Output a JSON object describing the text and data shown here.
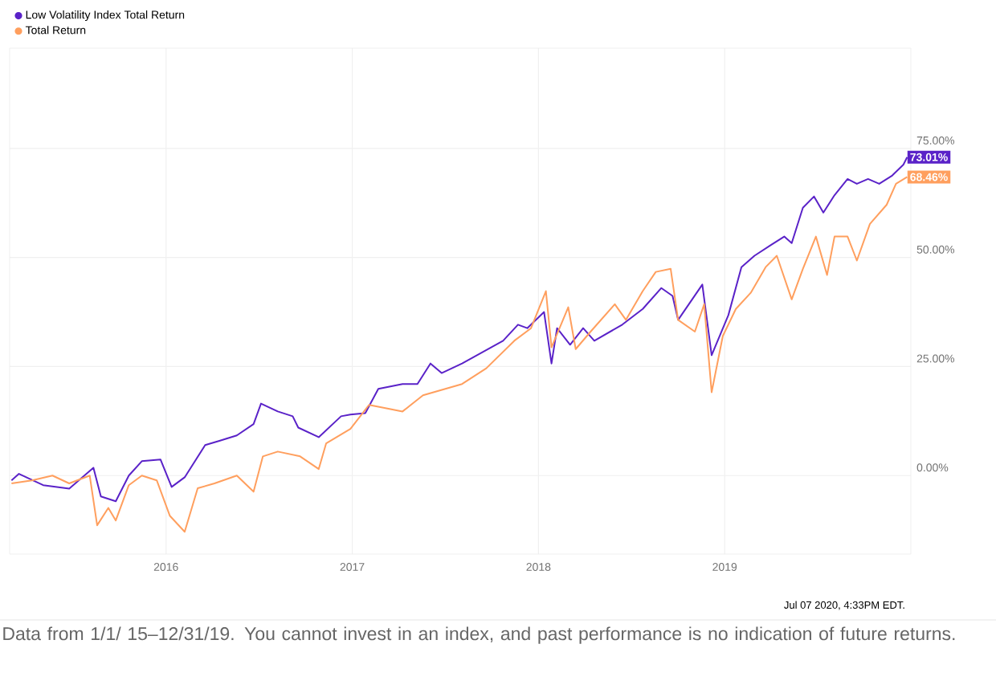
{
  "chart_data": {
    "type": "line",
    "series": [
      {
        "name": "Low Volatility Index Total Return",
        "color": "#5a22c8",
        "x": [
          2015.17,
          2015.21,
          2015.34,
          2015.48,
          2015.61,
          2015.65,
          2015.73,
          2015.8,
          2015.87,
          2015.97,
          2016.03,
          2016.1,
          2016.21,
          2016.29,
          2016.38,
          2016.47,
          2016.51,
          2016.6,
          2016.68,
          2016.71,
          2016.82,
          2016.94,
          2016.99,
          2017.07,
          2017.14,
          2017.27,
          2017.35,
          2017.42,
          2017.48,
          2017.59,
          2017.7,
          2017.81,
          2017.89,
          2017.94,
          2018.03,
          2018.07,
          2018.1,
          2018.17,
          2018.24,
          2018.3,
          2018.45,
          2018.56,
          2018.66,
          2018.72,
          2018.75,
          2018.88,
          2018.93,
          2019.02,
          2019.09,
          2019.16,
          2019.25,
          2019.32,
          2019.36,
          2019.42,
          2019.48,
          2019.53,
          2019.59,
          2019.66,
          2019.71,
          2019.77,
          2019.83,
          2019.9,
          2019.96,
          2019.98
        ],
        "values": [
          -1.1,
          0.4,
          -2.2,
          -3,
          1.8,
          -4.8,
          -5.9,
          0,
          3.3,
          3.7,
          -2.6,
          -0.4,
          7,
          8,
          9.2,
          11.8,
          16.5,
          14.7,
          13.6,
          11,
          8.8,
          13.6,
          14,
          14.3,
          19.9,
          21,
          21,
          25.7,
          23.5,
          25.7,
          28.3,
          30.9,
          34.6,
          33.8,
          37.5,
          25.7,
          33.8,
          30,
          33.8,
          30.9,
          34.6,
          38.2,
          43,
          41.2,
          35.7,
          43.8,
          27.6,
          36.8,
          47.8,
          50.4,
          52.9,
          54.8,
          53.3,
          61.4,
          64,
          60.3,
          64.3,
          68,
          66.9,
          68,
          66.9,
          68.8,
          71.3,
          73.01
        ],
        "value_labels": [
          null,
          null,
          null,
          null,
          null,
          null,
          null,
          null,
          null,
          null,
          null,
          null,
          null,
          null,
          null,
          null,
          null,
          null,
          null,
          null,
          null,
          null,
          null,
          null,
          null,
          null,
          null,
          null,
          null,
          null,
          null,
          null,
          null,
          null,
          null,
          null,
          null,
          null,
          null,
          null,
          null,
          null,
          null,
          null,
          null,
          null,
          null,
          null,
          null,
          null,
          null,
          null,
          null,
          null,
          null,
          null,
          null,
          null,
          null,
          null,
          null,
          null,
          null,
          "73.01%"
        ]
      },
      {
        "name": "Total Return",
        "color": "#ff9f5e",
        "x": [
          2015.17,
          2015.28,
          2015.39,
          2015.48,
          2015.59,
          2015.63,
          2015.69,
          2015.73,
          2015.8,
          2015.87,
          2015.95,
          2016.02,
          2016.1,
          2016.17,
          2016.26,
          2016.38,
          2016.47,
          2016.52,
          2016.6,
          2016.72,
          2016.82,
          2016.86,
          2016.99,
          2017.09,
          2017.27,
          2017.38,
          2017.5,
          2017.59,
          2017.72,
          2017.87,
          2017.96,
          2018.04,
          2018.07,
          2018.16,
          2018.2,
          2018.28,
          2018.41,
          2018.47,
          2018.56,
          2018.63,
          2018.71,
          2018.75,
          2018.84,
          2018.89,
          2018.93,
          2018.99,
          2019.06,
          2019.14,
          2019.22,
          2019.28,
          2019.36,
          2019.42,
          2019.49,
          2019.55,
          2019.59,
          2019.66,
          2019.71,
          2019.78,
          2019.87,
          2019.92,
          2019.98
        ],
        "values": [
          -1.8,
          -1.1,
          0,
          -1.8,
          0,
          -11.4,
          -7.4,
          -10.3,
          -2.2,
          0,
          -1.1,
          -9.2,
          -12.9,
          -2.9,
          -1.8,
          0,
          -3.7,
          4.4,
          5.5,
          4.4,
          1.5,
          7.4,
          10.7,
          16.2,
          14.7,
          18.4,
          19.9,
          21,
          24.6,
          30.9,
          33.8,
          42.3,
          29.4,
          38.6,
          29,
          33,
          39.3,
          35.7,
          42.3,
          46.7,
          47.4,
          35.7,
          33,
          39.3,
          19.1,
          32,
          38.2,
          41.9,
          47.8,
          50.4,
          40.4,
          47.4,
          54.8,
          46,
          54.8,
          54.8,
          49.3,
          57.7,
          62.1,
          66.9,
          68.46
        ],
        "value_labels": [
          null,
          null,
          null,
          null,
          null,
          null,
          null,
          null,
          null,
          null,
          null,
          null,
          null,
          null,
          null,
          null,
          null,
          null,
          null,
          null,
          null,
          null,
          null,
          null,
          null,
          null,
          null,
          null,
          null,
          null,
          null,
          null,
          null,
          null,
          null,
          null,
          null,
          null,
          null,
          null,
          null,
          null,
          null,
          null,
          null,
          null,
          null,
          null,
          null,
          null,
          null,
          null,
          null,
          null,
          null,
          null,
          null,
          null,
          null,
          null,
          "68.46%"
        ]
      }
    ],
    "xlim": [
      2015.16,
      2020.0
    ],
    "xticks": [
      2016,
      2017,
      2018,
      2019
    ],
    "ylim": [
      -18,
      98
    ],
    "yticks": [
      {
        "value": 0,
        "label": "0.00%"
      },
      {
        "value": 25,
        "label": "25.00%"
      },
      {
        "value": 50,
        "label": "50.00%"
      },
      {
        "value": 75,
        "label": "75.00%"
      }
    ],
    "grid": true,
    "legend": "top left",
    "annotations": [
      "Jul 07 2020, 4:33PM EDT.",
      "Data from 1/1/ 15–12/31/19. You cannot invest in an index, and past performance is no indication of future returns."
    ]
  }
}
